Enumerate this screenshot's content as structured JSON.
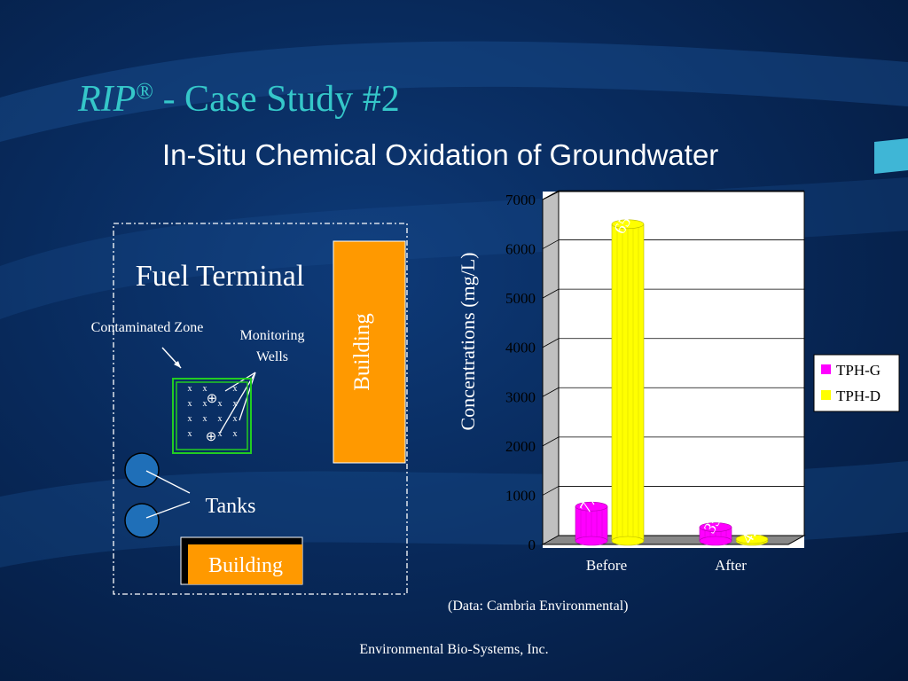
{
  "slide": {
    "title_italic": "RIP",
    "title_reg": "®",
    "title_rest": " - Case Study #2",
    "subtitle": "In-Situ Chemical Oxidation of Groundwater",
    "data_note": "(Data: Cambria Environmental)",
    "footer": "Environmental Bio-Systems, Inc."
  },
  "site_map": {
    "fuel_terminal": "Fuel Terminal",
    "contaminated_zone": "Contaminated Zone",
    "monitoring_wells_line1": "Monitoring",
    "monitoring_wells_line2": "Wells",
    "building_vertical": "Building",
    "building_bottom": "Building",
    "tanks": "Tanks",
    "well_symbol": "⊕",
    "x_mark": "x"
  },
  "chart_data": {
    "type": "bar",
    "categories": [
      "Before",
      "After"
    ],
    "series": [
      {
        "name": "TPH-G",
        "values": [
          770,
          350
        ],
        "labels": [
          "770",
          "350"
        ],
        "color": "#ff00ff"
      },
      {
        "name": "TPH-D",
        "values": [
          6500,
          4.7
        ],
        "labels": [
          "6500",
          "4.7"
        ],
        "color": "#ffff00"
      }
    ],
    "ylabel": "Concentrations  (mg/L)",
    "yticks": [
      "0",
      "1000",
      "2000",
      "3000",
      "4000",
      "5000",
      "6000",
      "7000"
    ],
    "ylim": [
      0,
      7000
    ],
    "grid": true,
    "legend_position": "right"
  }
}
